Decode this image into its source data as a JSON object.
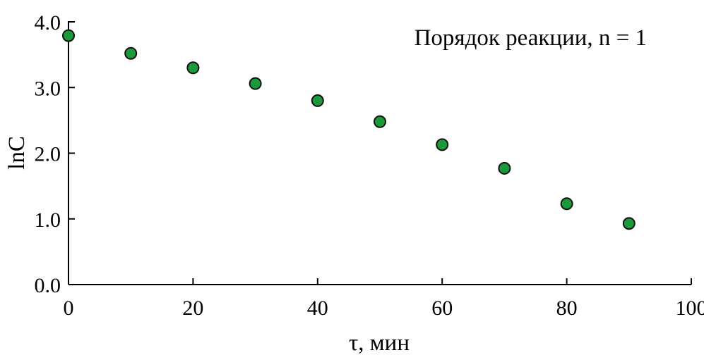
{
  "chart_data": {
    "type": "scatter",
    "title": "",
    "annotation": "Порядок реакции, n = 1",
    "xlabel": "τ, мин",
    "ylabel": "lnC",
    "xlim": [
      0,
      100
    ],
    "ylim": [
      0,
      4
    ],
    "xticks": [
      0,
      20,
      40,
      60,
      80,
      100
    ],
    "xtick_labels": [
      "0",
      "20",
      "40",
      "60",
      "80",
      "100"
    ],
    "yticks": [
      0,
      1,
      2,
      3,
      4
    ],
    "ytick_labels": [
      "0.0",
      "1.0",
      "2.0",
      "3.0",
      "4.0"
    ],
    "grid": false,
    "marker_color": "#1a9a3a",
    "series": [
      {
        "x": [
          0,
          10,
          20,
          30,
          40,
          50,
          60,
          70,
          80,
          90
        ],
        "y": [
          3.79,
          3.52,
          3.3,
          3.06,
          2.8,
          2.48,
          2.13,
          1.77,
          1.23,
          0.93
        ]
      }
    ]
  }
}
